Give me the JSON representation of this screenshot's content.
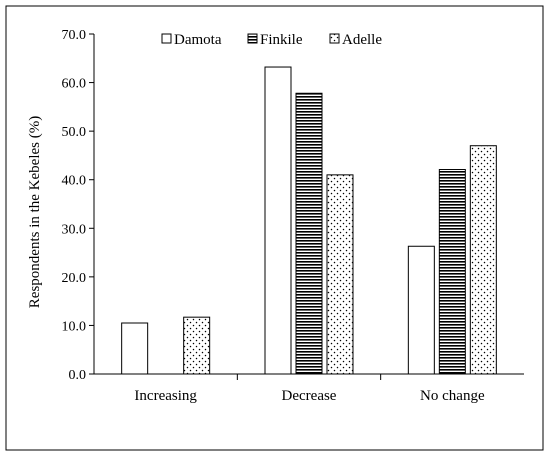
{
  "chart_data": {
    "type": "bar",
    "categories": [
      "Increasing",
      "Decrease",
      "No change"
    ],
    "series": [
      {
        "name": "Damota",
        "values": [
          10.5,
          63.2,
          26.3
        ],
        "pattern": "plain"
      },
      {
        "name": "Finkile",
        "values": [
          0,
          57.8,
          42.1
        ],
        "pattern": "horizontal-lines"
      },
      {
        "name": "Adelle",
        "values": [
          11.7,
          41.0,
          47.0
        ],
        "pattern": "dots"
      }
    ],
    "ylabel": "Respondents in the Kebeles (%)",
    "xlabel": "",
    "ylim": [
      0,
      70
    ],
    "yticks": [
      "0.0",
      "10.0",
      "20.0",
      "30.0",
      "40.0",
      "50.0",
      "60.0",
      "70.0"
    ],
    "grid": false,
    "legend_position": "top-center",
    "colors": {
      "outline": "#000000",
      "fill": "#ffffff"
    }
  }
}
